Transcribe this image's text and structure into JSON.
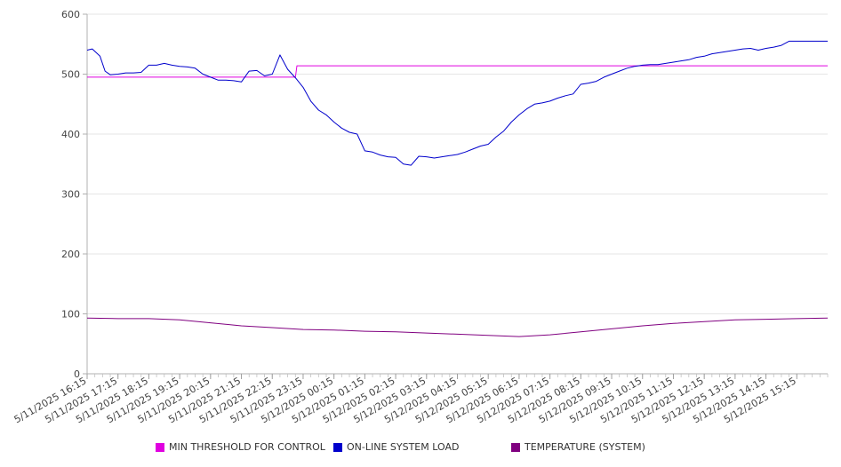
{
  "chart_data": {
    "type": "line",
    "title": "",
    "xlabel": "",
    "ylabel": "",
    "ylim": [
      0,
      600
    ],
    "yticks": [
      0,
      100,
      200,
      300,
      400,
      500,
      600
    ],
    "grid": true,
    "legend_position": "bottom",
    "x_tick_labels": [
      "5/11/2025 16:15",
      "5/11/2025 17:15",
      "5/11/2025 18:15",
      "5/11/2025 19:15",
      "5/11/2025 20:15",
      "5/11/2025 21:15",
      "5/11/2025 22:15",
      "5/11/2025 23:15",
      "5/12/2025 00:15",
      "5/12/2025 01:15",
      "5/12/2025 02:15",
      "5/12/2025 03:15",
      "5/12/2025 04:15",
      "5/12/2025 05:15",
      "5/12/2025 06:15",
      "5/12/2025 07:15",
      "5/12/2025 08:15",
      "5/12/2025 09:15",
      "5/12/2025 10:15",
      "5/12/2025 11:15",
      "5/12/2025 12:15",
      "5/12/2025 13:15",
      "5/12/2025 14:15",
      "5/12/2025 15:15"
    ],
    "x_start": "5/11/2025 16:15",
    "x_end": "5/12/2025 16:15",
    "series": [
      {
        "name": "MIN THRESHOLD FOR CONTROL",
        "color": "#e000e0",
        "x": [
          "5/11/2025 16:15",
          "5/11/2025 23:00",
          "5/11/2025 23:03",
          "5/12/2025 16:15"
        ],
        "values": [
          495,
          495,
          514,
          514
        ]
      },
      {
        "name": "ON-LINE SYSTEM LOAD",
        "color": "#0000cc",
        "x": [
          "5/11/2025 16:15",
          "5/11/2025 16:25",
          "5/11/2025 16:40",
          "5/11/2025 16:50",
          "5/11/2025 17:00",
          "5/11/2025 17:15",
          "5/11/2025 17:30",
          "5/11/2025 17:45",
          "5/11/2025 18:00",
          "5/11/2025 18:15",
          "5/11/2025 18:30",
          "5/11/2025 18:45",
          "5/11/2025 19:00",
          "5/11/2025 19:15",
          "5/11/2025 19:30",
          "5/11/2025 19:45",
          "5/11/2025 20:00",
          "5/11/2025 20:15",
          "5/11/2025 20:30",
          "5/11/2025 20:45",
          "5/11/2025 21:00",
          "5/11/2025 21:15",
          "5/11/2025 21:30",
          "5/11/2025 21:45",
          "5/11/2025 22:00",
          "5/11/2025 22:15",
          "5/11/2025 22:30",
          "5/11/2025 22:45",
          "5/11/2025 23:00",
          "5/11/2025 23:15",
          "5/11/2025 23:30",
          "5/11/2025 23:45",
          "5/12/2025 00:00",
          "5/12/2025 00:15",
          "5/12/2025 00:30",
          "5/12/2025 00:45",
          "5/12/2025 01:00",
          "5/12/2025 01:15",
          "5/12/2025 01:30",
          "5/12/2025 01:45",
          "5/12/2025 02:00",
          "5/12/2025 02:15",
          "5/12/2025 02:30",
          "5/12/2025 02:45",
          "5/12/2025 03:00",
          "5/12/2025 03:15",
          "5/12/2025 03:30",
          "5/12/2025 03:45",
          "5/12/2025 04:00",
          "5/12/2025 04:15",
          "5/12/2025 04:30",
          "5/12/2025 04:45",
          "5/12/2025 05:00",
          "5/12/2025 05:15",
          "5/12/2025 05:30",
          "5/12/2025 05:45",
          "5/12/2025 06:00",
          "5/12/2025 06:15",
          "5/12/2025 06:30",
          "5/12/2025 06:45",
          "5/12/2025 07:00",
          "5/12/2025 07:15",
          "5/12/2025 07:30",
          "5/12/2025 07:45",
          "5/12/2025 08:00",
          "5/12/2025 08:15",
          "5/12/2025 08:30",
          "5/12/2025 08:45",
          "5/12/2025 09:00",
          "5/12/2025 09:15",
          "5/12/2025 09:30",
          "5/12/2025 09:45",
          "5/12/2025 10:00",
          "5/12/2025 10:15",
          "5/12/2025 10:30",
          "5/12/2025 10:45",
          "5/12/2025 11:00",
          "5/12/2025 11:15",
          "5/12/2025 11:30",
          "5/12/2025 11:45",
          "5/12/2025 12:00",
          "5/12/2025 12:15",
          "5/12/2025 12:30",
          "5/12/2025 12:45",
          "5/12/2025 13:00",
          "5/12/2025 13:15",
          "5/12/2025 13:30",
          "5/12/2025 13:45",
          "5/12/2025 14:00",
          "5/12/2025 14:15",
          "5/12/2025 14:30",
          "5/12/2025 14:45",
          "5/12/2025 15:00",
          "5/12/2025 15:15",
          "5/12/2025 15:30",
          "5/12/2025 15:45",
          "5/12/2025 16:00",
          "5/12/2025 16:15"
        ],
        "values": [
          540,
          542,
          530,
          505,
          499,
          500,
          502,
          502,
          503,
          515,
          515,
          518,
          515,
          513,
          512,
          510,
          500,
          495,
          490,
          490,
          489,
          487,
          505,
          506,
          497,
          500,
          532,
          508,
          494,
          478,
          455,
          440,
          432,
          420,
          410,
          403,
          400,
          372,
          370,
          365,
          362,
          361,
          350,
          348,
          363,
          362,
          360,
          362,
          364,
          366,
          370,
          375,
          380,
          383,
          395,
          405,
          420,
          432,
          442,
          450,
          452,
          455,
          460,
          464,
          467,
          483,
          485,
          488,
          495,
          500,
          505,
          510,
          513,
          515,
          516,
          516,
          518,
          520,
          522,
          524,
          528,
          530,
          534,
          536,
          538,
          540,
          542,
          543,
          540,
          543,
          545,
          548,
          555,
          555,
          555,
          555,
          555,
          555
        ]
      },
      {
        "name": "TEMPERATURE (SYSTEM)",
        "color": "#800080",
        "x": [
          "5/11/2025 16:15",
          "5/11/2025 17:15",
          "5/11/2025 18:15",
          "5/11/2025 19:15",
          "5/11/2025 20:15",
          "5/11/2025 21:15",
          "5/11/2025 22:15",
          "5/11/2025 23:15",
          "5/12/2025 00:15",
          "5/12/2025 01:15",
          "5/12/2025 02:15",
          "5/12/2025 03:15",
          "5/12/2025 04:15",
          "5/12/2025 05:15",
          "5/12/2025 06:15",
          "5/12/2025 07:15",
          "5/12/2025 08:15",
          "5/12/2025 09:15",
          "5/12/2025 10:15",
          "5/12/2025 11:15",
          "5/12/2025 12:15",
          "5/12/2025 13:15",
          "5/12/2025 14:15",
          "5/12/2025 15:15",
          "5/12/2025 16:15"
        ],
        "values": [
          93,
          92,
          92,
          90,
          85,
          80,
          77,
          74,
          73,
          71,
          70,
          68,
          66,
          64,
          62,
          65,
          70,
          75,
          80,
          84,
          87,
          90,
          91,
          92,
          93
        ]
      }
    ]
  }
}
